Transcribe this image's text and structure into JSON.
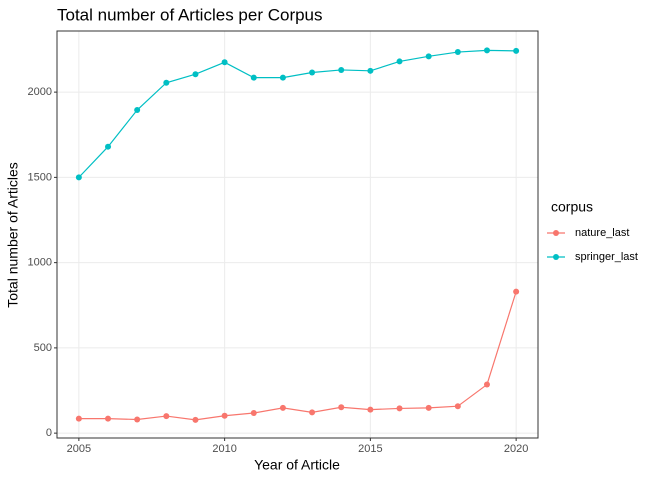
{
  "chart_data": {
    "type": "line",
    "title": "Total number of Articles per Corpus",
    "x_label": "Year of Article",
    "y_label": "Total number of Articles",
    "x": [
      2005,
      2006,
      2007,
      2008,
      2009,
      2010,
      2011,
      2012,
      2013,
      2014,
      2015,
      2016,
      2017,
      2018,
      2019,
      2020
    ],
    "series": [
      {
        "name": "nature_last",
        "color": "#F8766D",
        "values": [
          85,
          85,
          80,
          100,
          78,
          102,
          118,
          148,
          122,
          152,
          138,
          145,
          148,
          158,
          285,
          830
        ]
      },
      {
        "name": "springer_last",
        "color": "#00BFC4",
        "values": [
          1500,
          1680,
          1895,
          2055,
          2105,
          2175,
          2085,
          2085,
          2115,
          2130,
          2125,
          2180,
          2210,
          2235,
          2245,
          2242
        ]
      }
    ],
    "legend_title": "corpus",
    "legend_position": "right",
    "xlim": [
      2004.25,
      2020.75
    ],
    "xticks": [
      2005,
      2010,
      2015,
      2020
    ],
    "ylim": [
      -28.5,
      2358.5
    ],
    "yticks": [
      0,
      500,
      1000,
      1500,
      2000
    ],
    "grid": true
  }
}
